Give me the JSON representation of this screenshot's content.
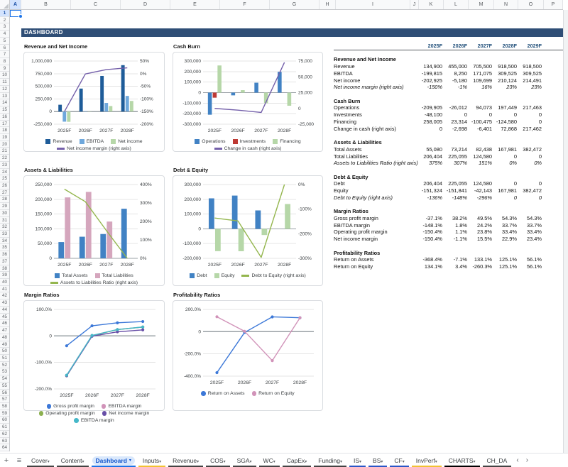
{
  "app": {
    "banner": "DASHBOARD",
    "selected_cell": "A1"
  },
  "sheet": {
    "column_headers": [
      "A",
      "B",
      "C",
      "D",
      "E",
      "F",
      "G",
      "H",
      "I",
      "J",
      "K",
      "L",
      "M",
      "N",
      "O",
      "P"
    ],
    "row_count": 64
  },
  "tabs": {
    "add_icon": "+",
    "menu_icon": "≡",
    "nav_prev": "‹",
    "nav_next": "›",
    "active": "Dashboard",
    "items": [
      {
        "label": "Cover",
        "color": "#434343"
      },
      {
        "label": "Content",
        "color": "#434343"
      },
      {
        "label": "Dashboard",
        "color": "#1A73E8",
        "active": true
      },
      {
        "label": "Inputs",
        "color": "#F1C232"
      },
      {
        "label": "Revenue",
        "color": "#434343"
      },
      {
        "label": "COS",
        "color": "#434343"
      },
      {
        "label": "SGA",
        "color": "#434343"
      },
      {
        "label": "WC",
        "color": "#434343"
      },
      {
        "label": "CapEx",
        "color": "#434343"
      },
      {
        "label": "Funding",
        "color": "#434343"
      },
      {
        "label": "IS",
        "color": "#2A56C6"
      },
      {
        "label": "BS",
        "color": "#2A56C6"
      },
      {
        "label": "CF",
        "color": "#2A56C6"
      },
      {
        "label": "InvPerf",
        "color": "#F1C232"
      },
      {
        "label": "CHARTS",
        "color": "#000000"
      },
      {
        "label": "CH_DA",
        "color": "#434343",
        "truncated": true
      }
    ]
  },
  "table": {
    "columns": [
      "2025F",
      "2026F",
      "2027F",
      "2028F",
      "2029F"
    ],
    "sections": [
      {
        "title": "Revenue and Net Income",
        "rows": [
          {
            "label": "Revenue",
            "values": [
              "134,900",
              "455,000",
              "705,500",
              "918,500",
              "918,500"
            ]
          },
          {
            "label": "EBITDA",
            "values": [
              "-199,815",
              "8,250",
              "171,075",
              "309,525",
              "309,525"
            ]
          },
          {
            "label": "Net income",
            "values": [
              "-202,925",
              "-5,180",
              "109,699",
              "210,124",
              "214,491"
            ]
          },
          {
            "label": "Net income margin (right axis)",
            "values": [
              "-150%",
              "-1%",
              "16%",
              "23%",
              "23%"
            ],
            "italic": true
          }
        ]
      },
      {
        "title": "Cash Burn",
        "rows": [
          {
            "label": "Operations",
            "values": [
              "-209,905",
              "-26,012",
              "94,073",
              "197,449",
              "217,463"
            ]
          },
          {
            "label": "Investments",
            "values": [
              "-48,100",
              "0",
              "0",
              "0",
              "0"
            ]
          },
          {
            "label": "Financing",
            "values": [
              "258,005",
              "23,314",
              "-100,475",
              "-124,580",
              "0"
            ]
          },
          {
            "label": "Change in cash (right axis)",
            "values": [
              "0",
              "-2,698",
              "-6,401",
              "72,868",
              "217,462"
            ]
          }
        ]
      },
      {
        "title": "Assets & Liabilities",
        "rows": [
          {
            "label": "Total Assets",
            "values": [
              "55,080",
              "73,214",
              "82,438",
              "167,981",
              "382,472"
            ]
          },
          {
            "label": "Total Liabilities",
            "values": [
              "206,404",
              "225,055",
              "124,580",
              "0",
              "0"
            ]
          },
          {
            "label": "Assets to Liabilities Ratio (right axis)",
            "values": [
              "375%",
              "307%",
              "151%",
              "0%",
              "0%"
            ],
            "italic": true
          }
        ]
      },
      {
        "title": "Debt & Equity",
        "rows": [
          {
            "label": "Debt",
            "values": [
              "206,404",
              "225,055",
              "124,580",
              "0",
              "0"
            ]
          },
          {
            "label": "Equity",
            "values": [
              "-151,324",
              "-151,841",
              "-42,143",
              "167,981",
              "382,472"
            ]
          },
          {
            "label": "Debt to Equity (right axis)",
            "values": [
              "-136%",
              "-148%",
              "-296%",
              "0",
              "0"
            ],
            "italic": true
          }
        ]
      },
      {
        "title": "Margin Ratios",
        "rows": [
          {
            "label": "Gross profit margin",
            "values": [
              "-37.1%",
              "38.2%",
              "49.5%",
              "54.3%",
              "54.3%"
            ]
          },
          {
            "label": "EBITDA margin",
            "values": [
              "-148.1%",
              "1.8%",
              "24.2%",
              "33.7%",
              "33.7%"
            ]
          },
          {
            "label": "Operating profit margin",
            "values": [
              "-150.4%",
              "1.1%",
              "23.8%",
              "33.4%",
              "33.4%"
            ]
          },
          {
            "label": "Net income margin",
            "values": [
              "-150.4%",
              "-1.1%",
              "15.5%",
              "22.9%",
              "23.4%"
            ]
          }
        ]
      },
      {
        "title": "Profitability Ratios",
        "rows": [
          {
            "label": "Return on Assets",
            "values": [
              "-368.4%",
              "-7.1%",
              "133.1%",
              "125.1%",
              "56.1%"
            ]
          },
          {
            "label": "Return on Equity",
            "values": [
              "134.1%",
              "3.4%",
              "-260.3%",
              "125.1%",
              "56.1%"
            ]
          }
        ]
      }
    ]
  },
  "chart_data": [
    {
      "title": "Revenue and Net Income",
      "type": "bar",
      "categories": [
        "2025F",
        "2026F",
        "2027F",
        "2028F"
      ],
      "left_axis": {
        "min": -250000,
        "max": 1000000,
        "step": 250000,
        "format": "num"
      },
      "right_axis": {
        "min": -200,
        "max": 50,
        "step": 50,
        "format": "pct0"
      },
      "legend_position": "bottom",
      "grid": true,
      "legend_rows": [
        [
          0,
          1,
          2
        ],
        [
          3
        ]
      ],
      "series": [
        {
          "name": "Revenue",
          "type": "bar",
          "axis": "left",
          "color": "#1E5C99",
          "values": [
            134900,
            455000,
            705500,
            918500
          ]
        },
        {
          "name": "EBITDA",
          "type": "bar",
          "axis": "left",
          "color": "#6FA8DC",
          "values": [
            -199815,
            8250,
            171075,
            309525
          ]
        },
        {
          "name": "Net income",
          "type": "bar",
          "axis": "left",
          "color": "#B6D7A8",
          "values": [
            -202925,
            -5180,
            109699,
            210124
          ]
        },
        {
          "name": "Net income margin (right axis)",
          "type": "line",
          "axis": "right",
          "color": "#7460AA",
          "values": [
            -150,
            -1,
            16,
            23
          ]
        }
      ]
    },
    {
      "title": "Cash Burn",
      "type": "bar",
      "categories": [
        "2025F",
        "2026F",
        "2027F",
        "2028F"
      ],
      "left_axis": {
        "min": -300000,
        "max": 300000,
        "step": 100000,
        "format": "num"
      },
      "right_axis": {
        "min": -25000,
        "max": 75000,
        "step": 25000,
        "format": "num"
      },
      "legend_position": "bottom",
      "grid": true,
      "legend_rows": [
        [
          0,
          1,
          2
        ],
        [
          3
        ]
      ],
      "series": [
        {
          "name": "Operations",
          "type": "bar",
          "axis": "left",
          "color": "#4182C4",
          "values": [
            -209905,
            -26012,
            94073,
            197449
          ]
        },
        {
          "name": "Investments",
          "type": "bar",
          "axis": "left",
          "color": "#BE3A34",
          "values": [
            -48100,
            0,
            0,
            0
          ]
        },
        {
          "name": "Financing",
          "type": "bar",
          "axis": "left",
          "color": "#B6D7A8",
          "values": [
            258005,
            23314,
            -100475,
            -124580
          ]
        },
        {
          "name": "Change in cash (right axis)",
          "type": "line",
          "axis": "right",
          "color": "#7460AA",
          "values": [
            0,
            -2698,
            -6401,
            72868
          ]
        }
      ]
    },
    {
      "title": "Assets & Liabilities",
      "type": "bar",
      "categories": [
        "2025F",
        "2026F",
        "2027F",
        "2028F"
      ],
      "left_axis": {
        "min": 0,
        "max": 250000,
        "step": 50000,
        "format": "num"
      },
      "right_axis": {
        "min": 0,
        "max": 400,
        "step": 100,
        "format": "pct0"
      },
      "legend_position": "bottom",
      "grid": true,
      "legend_rows": [
        [
          0,
          1
        ],
        [
          2
        ]
      ],
      "series": [
        {
          "name": "Total Assets",
          "type": "bar",
          "axis": "left",
          "color": "#4182C4",
          "values": [
            55080,
            73214,
            82438,
            167981
          ]
        },
        {
          "name": "Total Liabilities",
          "type": "bar",
          "axis": "left",
          "color": "#D5A6BD",
          "values": [
            206404,
            225055,
            124580,
            0
          ]
        },
        {
          "name": "Assets to Liabilities Ratio (right axis)",
          "type": "line",
          "axis": "right",
          "color": "#94B64E",
          "values": [
            375,
            307,
            151,
            0
          ]
        }
      ]
    },
    {
      "title": "Debt & Equity",
      "type": "bar",
      "categories": [
        "2025F",
        "2026F",
        "2027F",
        "2028F"
      ],
      "left_axis": {
        "min": -200000,
        "max": 300000,
        "step": 100000,
        "format": "num"
      },
      "right_axis": {
        "min": -300,
        "max": 0,
        "step": 100,
        "format": "pct0"
      },
      "legend_position": "bottom",
      "grid": true,
      "legend_rows": [
        [
          0,
          1,
          2
        ]
      ],
      "series": [
        {
          "name": "Debt",
          "type": "bar",
          "axis": "left",
          "color": "#4182C4",
          "values": [
            206404,
            225055,
            124580,
            0
          ]
        },
        {
          "name": "Equity",
          "type": "bar",
          "axis": "left",
          "color": "#B6D7A8",
          "values": [
            -151324,
            -151841,
            -42143,
            167981
          ]
        },
        {
          "name": "Debt to Equity (right axis)",
          "type": "line",
          "axis": "right",
          "color": "#94B64E",
          "values": [
            -136,
            -148,
            -296,
            0
          ]
        }
      ]
    },
    {
      "title": "Margin Ratios",
      "type": "line",
      "categories": [
        "2025F",
        "2026F",
        "2027F",
        "2028F"
      ],
      "left_axis": {
        "min": -200,
        "max": 100,
        "step": 100,
        "format": "pct1"
      },
      "legend_position": "bottom",
      "grid": true,
      "legend_rows": [
        [
          0,
          1
        ],
        [
          2,
          3
        ],
        [
          4
        ]
      ],
      "series": [
        {
          "name": "Gross profit margin",
          "type": "line",
          "axis": "left",
          "color": "#3C78D8",
          "values": [
            -37.1,
            38.2,
            49.5,
            54.3
          ]
        },
        {
          "name": "EBITDA margin",
          "type": "line",
          "axis": "left",
          "color": "#D193B9",
          "values": [
            -148.1,
            1.8,
            24.2,
            33.7
          ]
        },
        {
          "name": "Operating profit margin",
          "type": "line",
          "axis": "left",
          "color": "#8CB04F",
          "values": [
            -150.4,
            1.1,
            23.8,
            33.4
          ]
        },
        {
          "name": "Net income margin",
          "type": "line",
          "axis": "left",
          "color": "#674EA7",
          "values": [
            -150.4,
            -1.1,
            15.5,
            22.9
          ]
        },
        {
          "name": "EBITDA margin",
          "type": "line",
          "axis": "left",
          "color": "#45B8C9",
          "values": [
            -148.1,
            1.8,
            24.2,
            33.7
          ]
        }
      ]
    },
    {
      "title": "Profitability Ratios",
      "type": "line",
      "categories": [
        "2025F",
        "2026F",
        "2027F",
        "2028F"
      ],
      "left_axis": {
        "min": -400,
        "max": 200,
        "step": 200,
        "format": "pct1"
      },
      "legend_position": "bottom",
      "grid": true,
      "legend_rows": [
        [
          0,
          1
        ]
      ],
      "series": [
        {
          "name": "Return on Assets",
          "type": "line",
          "axis": "left",
          "color": "#3C78D8",
          "values": [
            -368.4,
            -7.1,
            133.1,
            125.1
          ]
        },
        {
          "name": "Return on Equity",
          "type": "line",
          "axis": "left",
          "color": "#D193B9",
          "values": [
            134.1,
            3.4,
            -260.3,
            125.1
          ]
        }
      ]
    }
  ]
}
